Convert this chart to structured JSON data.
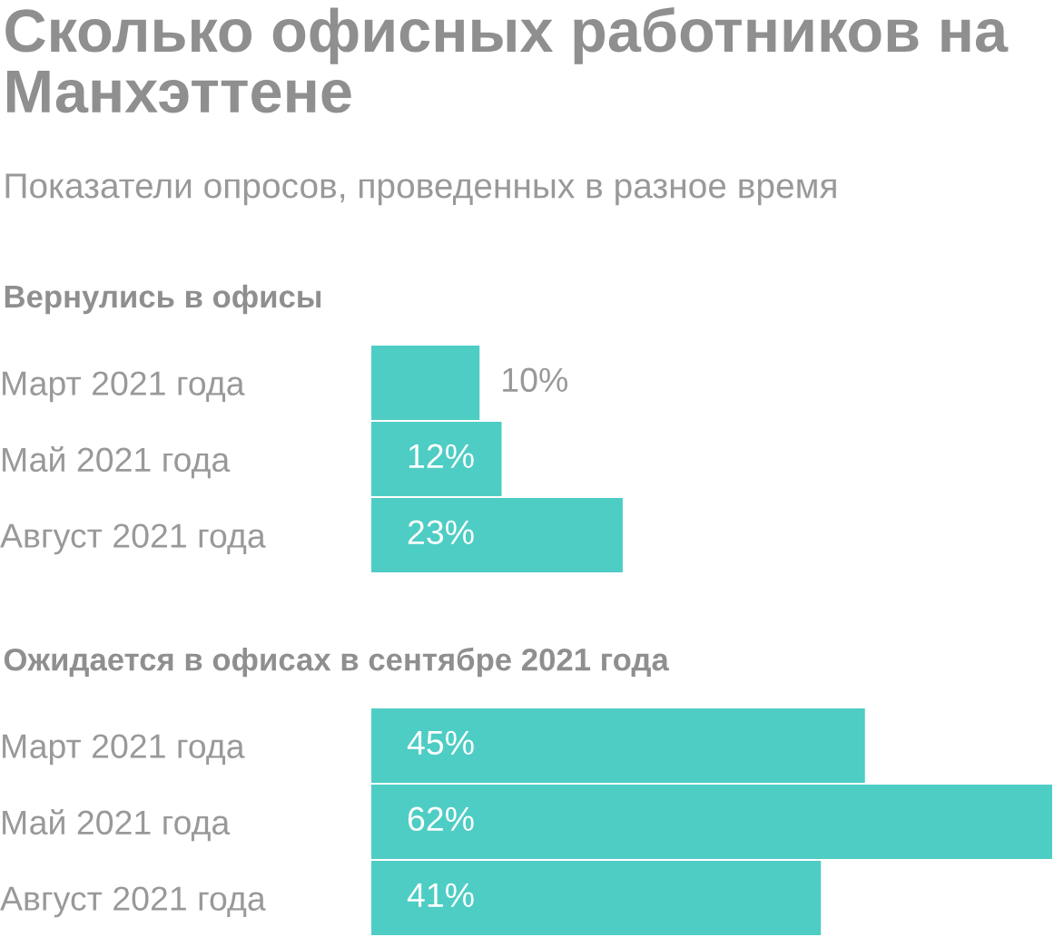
{
  "chart_data": [
    {
      "type": "bar",
      "orientation": "horizontal",
      "title": "Сколько офисных работников на Манхэттене",
      "subtitle": "Показатели опросов, проведенных в разное время",
      "annotations": [
        "Вернулись в офисы"
      ],
      "categories": [
        "Март 2021 года",
        "Май 2021 года",
        "Август 2021 года"
      ],
      "values": [
        10,
        12,
        23
      ],
      "value_labels": [
        "10%",
        "12%",
        "23%"
      ],
      "color": "#4ecdc4",
      "tick_labels": "y",
      "grid": false,
      "legend": false
    },
    {
      "type": "bar",
      "orientation": "horizontal",
      "title": "Ожидается в офисах в сентябре 2021 года",
      "categories": [
        "Март 2021 года",
        "Май 2021 года",
        "Август 2021 года"
      ],
      "values": [
        45,
        62,
        41
      ],
      "value_labels": [
        "45%",
        "62%",
        "41%"
      ],
      "color": "#4ecdc4",
      "tick_labels": "y",
      "grid": false,
      "legend": false
    }
  ]
}
